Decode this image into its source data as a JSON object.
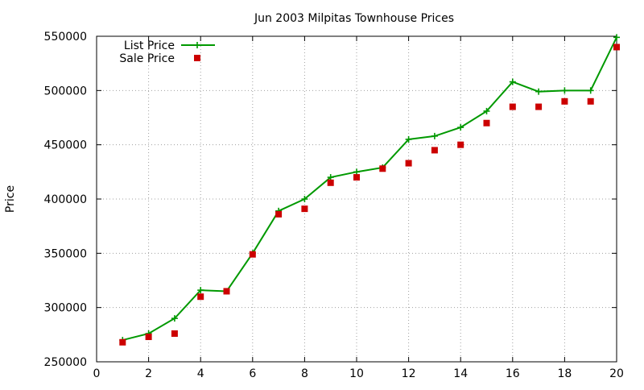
{
  "chart_data": {
    "type": "line",
    "title": "Jun 2003 Milpitas Townhouse Prices",
    "xlabel": "",
    "ylabel": "Price",
    "xlim": [
      0,
      20
    ],
    "ylim": [
      250000,
      550000
    ],
    "xticks": [
      0,
      2,
      4,
      6,
      8,
      10,
      12,
      14,
      16,
      18,
      20
    ],
    "yticks": [
      250000,
      300000,
      350000,
      400000,
      450000,
      500000,
      550000
    ],
    "grid": true,
    "legend_position": "top-left",
    "series": [
      {
        "name": "List Price",
        "style": "linespoints",
        "marker": "plus",
        "color": "#009900",
        "x": [
          1,
          2,
          3,
          4,
          5,
          6,
          7,
          8,
          9,
          10,
          11,
          12,
          13,
          14,
          15,
          16,
          17,
          18,
          19,
          20
        ],
        "y": [
          270000,
          276000,
          290000,
          316000,
          315000,
          350000,
          389000,
          400000,
          420000,
          425000,
          429000,
          455000,
          458000,
          466000,
          481000,
          508000,
          499000,
          500000,
          500000,
          549000
        ]
      },
      {
        "name": "Sale Price",
        "style": "points",
        "marker": "square",
        "color": "#cc0000",
        "x": [
          1,
          2,
          3,
          4,
          5,
          6,
          7,
          8,
          9,
          10,
          11,
          12,
          13,
          14,
          15,
          16,
          17,
          18,
          19,
          20
        ],
        "y": [
          268000,
          273000,
          276000,
          310000,
          315000,
          349000,
          386000,
          391000,
          415000,
          420000,
          428000,
          433000,
          445000,
          450000,
          470000,
          485000,
          485000,
          490000,
          490000,
          540000
        ]
      }
    ]
  }
}
